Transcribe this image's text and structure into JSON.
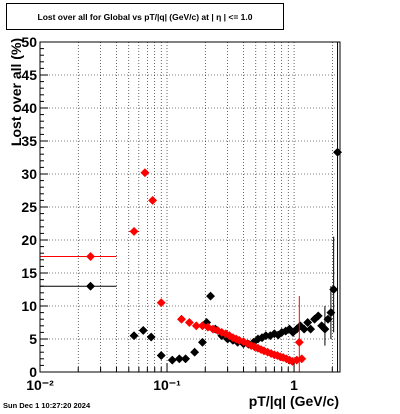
{
  "chart_data": {
    "type": "scatter",
    "title": "Lost over all for Global vs pT/|q| (GeV/c) at |  η  | <= 1.0",
    "xlabel": "pT/|q| (GeV/c)",
    "ylabel": "Lost over all (%)",
    "x_scale": "log",
    "xlim": [
      0.01,
      2.3
    ],
    "ylim": [
      0,
      50
    ],
    "y_ticks": [
      0,
      5,
      10,
      15,
      20,
      25,
      30,
      35,
      40,
      45,
      50
    ],
    "x_tick_labels": [
      "10⁻²",
      "10⁻¹",
      "1"
    ],
    "grid": true,
    "legend": "none",
    "series": [
      {
        "color": "#000000",
        "points": [
          {
            "x": 0.025,
            "y": 13.0,
            "xerr": [
              0.01,
              0.04
            ]
          },
          {
            "x": 0.055,
            "y": 5.5
          },
          {
            "x": 0.065,
            "y": 6.3
          },
          {
            "x": 0.075,
            "y": 5.3
          },
          {
            "x": 0.09,
            "y": 2.5
          },
          {
            "x": 0.11,
            "y": 1.8
          },
          {
            "x": 0.125,
            "y": 2.0
          },
          {
            "x": 0.14,
            "y": 2.0
          },
          {
            "x": 0.165,
            "y": 3.0
          },
          {
            "x": 0.19,
            "y": 4.5
          },
          {
            "x": 0.205,
            "y": 7.5
          },
          {
            "x": 0.22,
            "y": 11.5
          },
          {
            "x": 0.24,
            "y": 6.5
          },
          {
            "x": 0.27,
            "y": 5.5
          },
          {
            "x": 0.3,
            "y": 5.0
          },
          {
            "x": 0.33,
            "y": 4.8
          },
          {
            "x": 0.36,
            "y": 4.5
          },
          {
            "x": 0.4,
            "y": 4.3
          },
          {
            "x": 0.44,
            "y": 4.2
          },
          {
            "x": 0.48,
            "y": 4.5
          },
          {
            "x": 0.52,
            "y": 5.0
          },
          {
            "x": 0.56,
            "y": 5.2
          },
          {
            "x": 0.6,
            "y": 5.5
          },
          {
            "x": 0.65,
            "y": 5.5
          },
          {
            "x": 0.7,
            "y": 5.8
          },
          {
            "x": 0.75,
            "y": 5.6
          },
          {
            "x": 0.8,
            "y": 6.0
          },
          {
            "x": 0.86,
            "y": 6.2
          },
          {
            "x": 0.92,
            "y": 6.5
          },
          {
            "x": 0.98,
            "y": 6.0
          },
          {
            "x": 1.05,
            "y": 6.5
          },
          {
            "x": 1.12,
            "y": 7.0
          },
          {
            "x": 1.2,
            "y": 6.5
          },
          {
            "x": 1.28,
            "y": 7.5
          },
          {
            "x": 1.35,
            "y": 6.5
          },
          {
            "x": 1.45,
            "y": 8.0
          },
          {
            "x": 1.55,
            "y": 8.5
          },
          {
            "x": 1.65,
            "y": 7.0
          },
          {
            "x": 1.75,
            "y": 6.5,
            "yerr": [
              4.0,
              10.0
            ]
          },
          {
            "x": 1.85,
            "y": 8.0
          },
          {
            "x": 1.95,
            "y": 9.0,
            "yerr": [
              5.0,
              13.0
            ]
          },
          {
            "x": 2.05,
            "y": 12.5,
            "yerr": [
              6.0,
              20.5
            ]
          },
          {
            "x": 2.2,
            "y": 33.3,
            "yerr": [
              0.0,
              50.0
            ]
          }
        ]
      },
      {
        "color": "#ff0000",
        "points": [
          {
            "x": 0.025,
            "y": 17.5,
            "xerr": [
              0.01,
              0.04
            ]
          },
          {
            "x": 0.055,
            "y": 21.3,
            "xerr": [
              0.05,
              0.06
            ]
          },
          {
            "x": 0.067,
            "y": 30.2
          },
          {
            "x": 0.077,
            "y": 26.0
          },
          {
            "x": 0.09,
            "y": 10.5,
            "xerr": [
              0.085,
              0.095
            ]
          },
          {
            "x": 0.13,
            "y": 8.0
          },
          {
            "x": 0.15,
            "y": 7.5
          },
          {
            "x": 0.17,
            "y": 7.0
          },
          {
            "x": 0.19,
            "y": 7.0
          },
          {
            "x": 0.21,
            "y": 6.8
          },
          {
            "x": 0.23,
            "y": 6.5
          },
          {
            "x": 0.25,
            "y": 6.3
          },
          {
            "x": 0.27,
            "y": 6.0
          },
          {
            "x": 0.29,
            "y": 5.8
          },
          {
            "x": 0.31,
            "y": 5.5
          },
          {
            "x": 0.33,
            "y": 5.2
          },
          {
            "x": 0.35,
            "y": 5.0
          },
          {
            "x": 0.37,
            "y": 4.8
          },
          {
            "x": 0.4,
            "y": 4.6
          },
          {
            "x": 0.43,
            "y": 4.3
          },
          {
            "x": 0.46,
            "y": 4.0
          },
          {
            "x": 0.49,
            "y": 3.8
          },
          {
            "x": 0.52,
            "y": 3.6
          },
          {
            "x": 0.55,
            "y": 3.4
          },
          {
            "x": 0.58,
            "y": 3.2
          },
          {
            "x": 0.62,
            "y": 3.0
          },
          {
            "x": 0.66,
            "y": 2.8
          },
          {
            "x": 0.7,
            "y": 2.6
          },
          {
            "x": 0.74,
            "y": 2.5
          },
          {
            "x": 0.78,
            "y": 2.3
          },
          {
            "x": 0.82,
            "y": 2.2
          },
          {
            "x": 0.87,
            "y": 2.0
          },
          {
            "x": 0.92,
            "y": 1.8
          },
          {
            "x": 0.97,
            "y": 1.6
          },
          {
            "x": 1.05,
            "y": 1.8
          },
          {
            "x": 1.1,
            "y": 4.5,
            "yerr": [
              0.0,
              11.5
            ]
          },
          {
            "x": 1.15,
            "y": 2.0
          }
        ]
      }
    ]
  },
  "footer": {
    "timestamp": "Sun Dec  1 10:27:20 2024"
  }
}
